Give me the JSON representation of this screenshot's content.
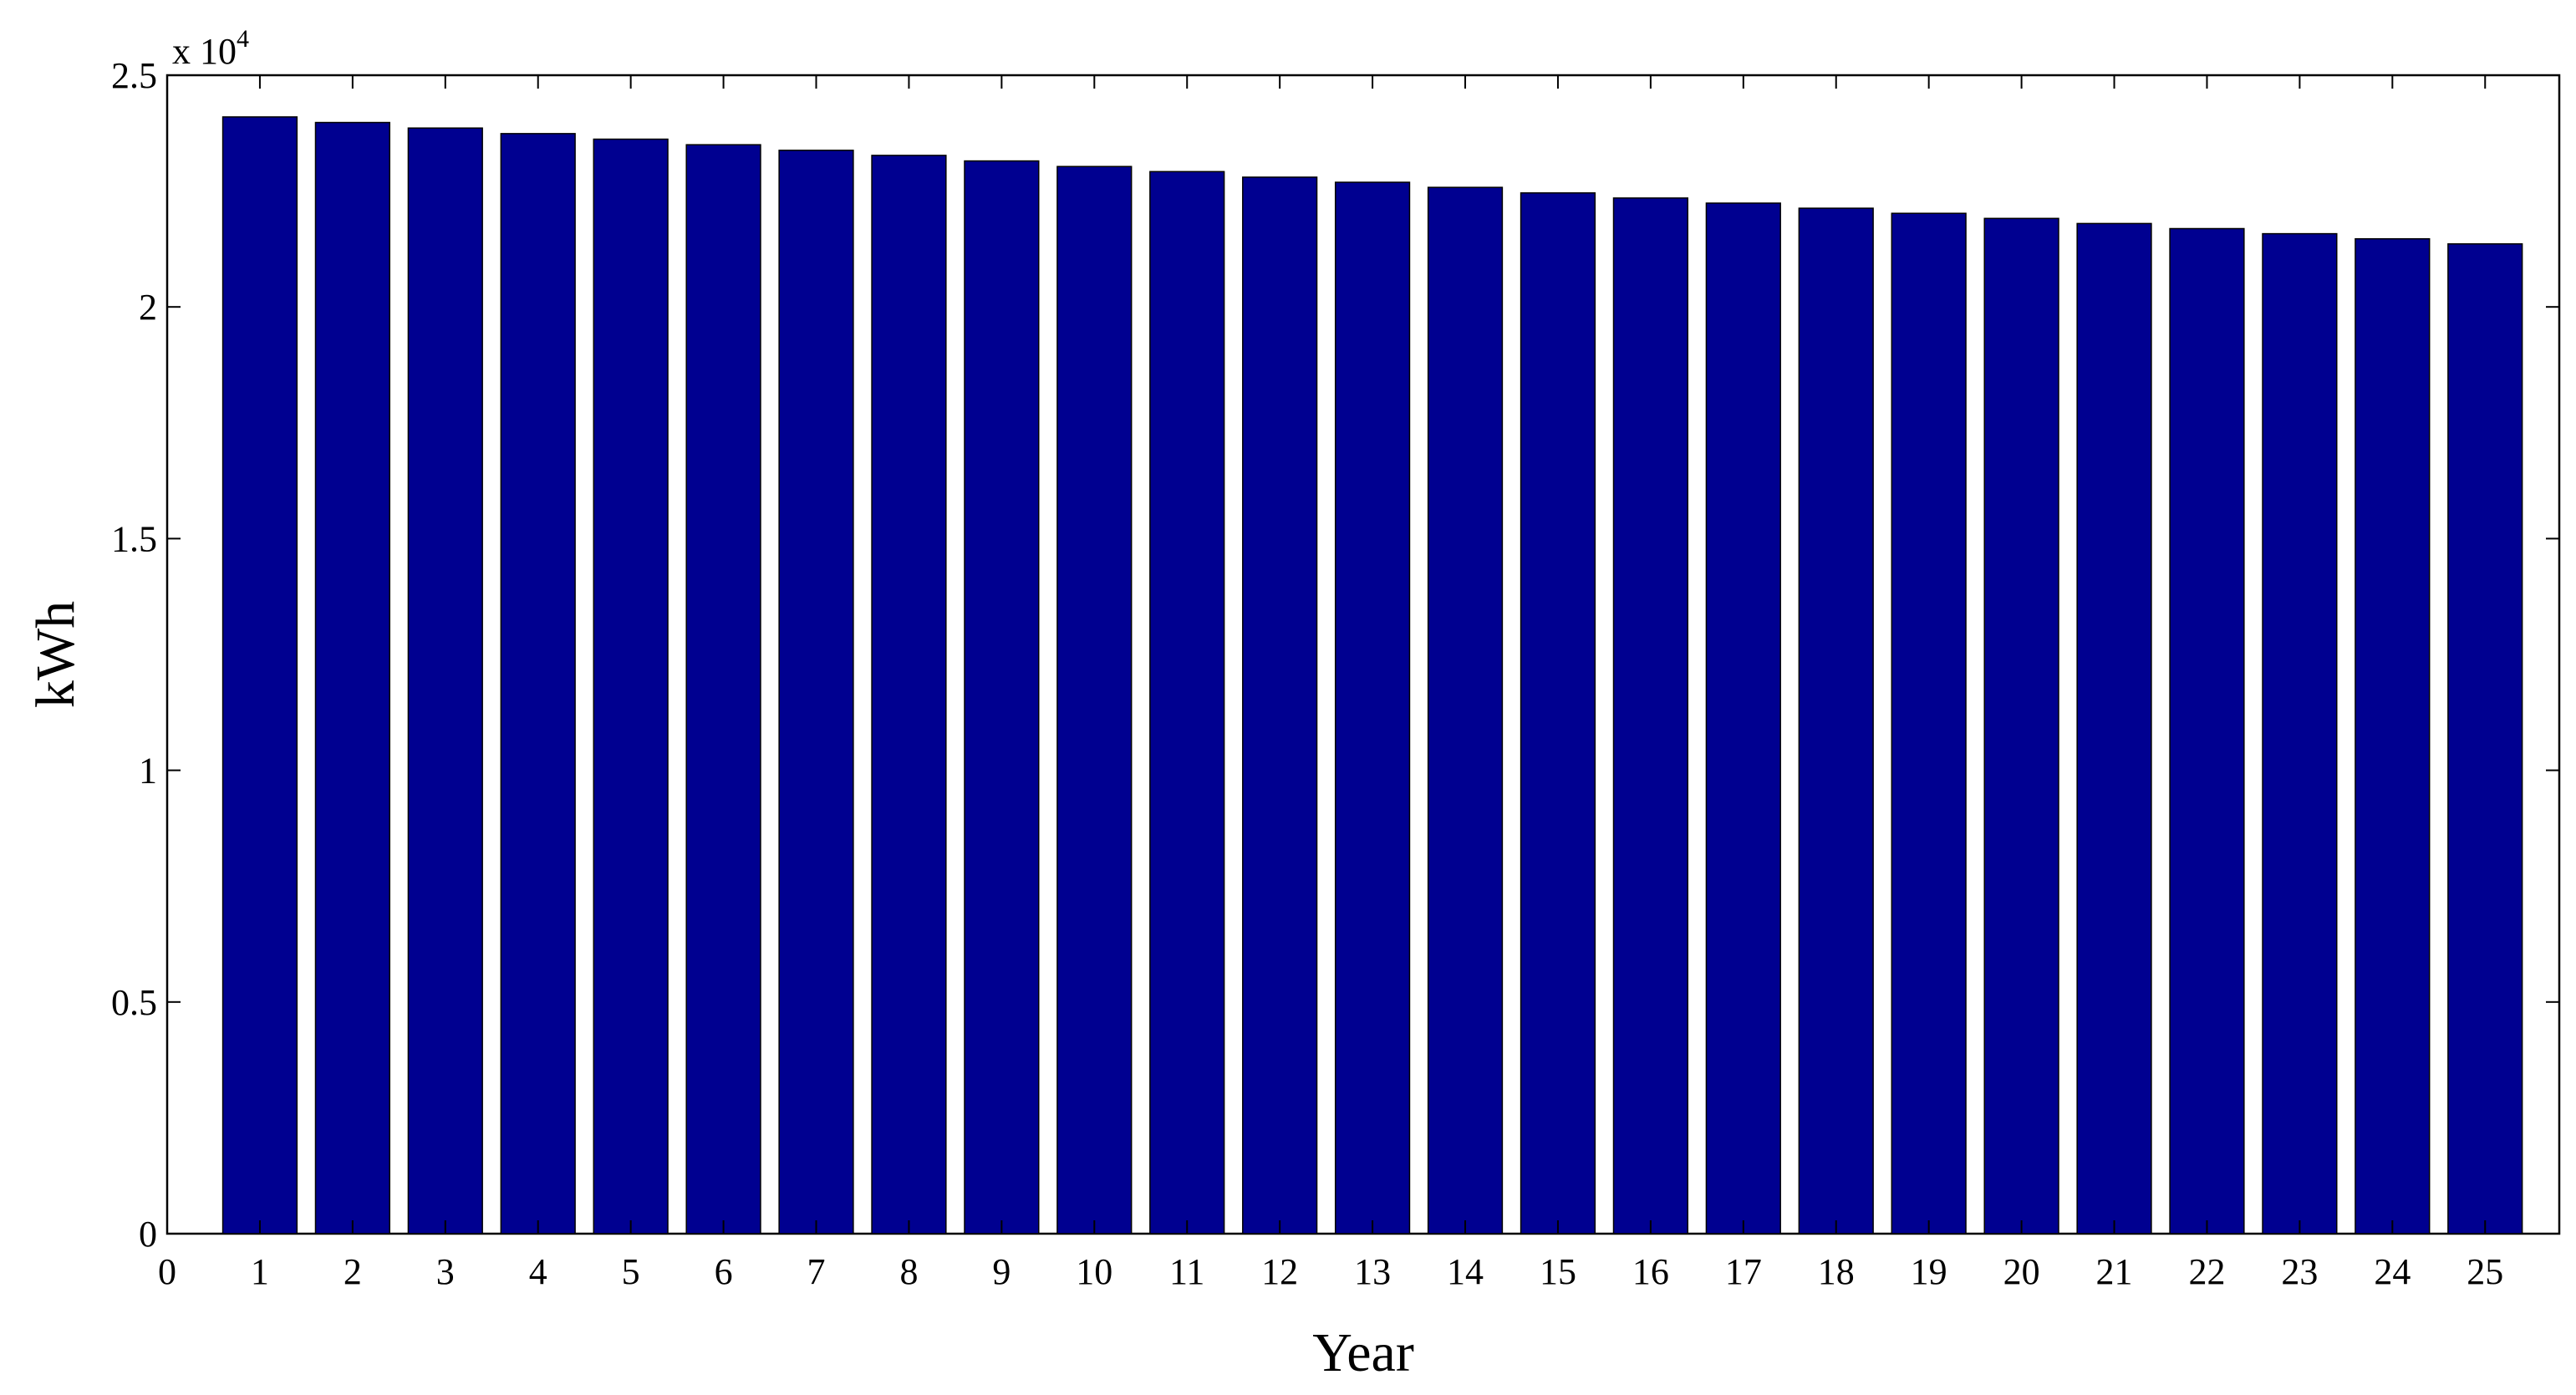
{
  "chart_data": {
    "type": "bar",
    "xlabel": "Year",
    "ylabel": "kWh",
    "y_multiplier": {
      "base": "x 10",
      "exponent": "4"
    },
    "categories": [
      "1",
      "2",
      "3",
      "4",
      "5",
      "6",
      "7",
      "8",
      "9",
      "10",
      "11",
      "12",
      "13",
      "14",
      "15",
      "16",
      "17",
      "18",
      "19",
      "20",
      "21",
      "22",
      "23",
      "24",
      "25"
    ],
    "values": [
      24100,
      23980,
      23860,
      23740,
      23620,
      23500,
      23380,
      23270,
      23150,
      23030,
      22920,
      22800,
      22690,
      22580,
      22460,
      22350,
      22240,
      22130,
      22020,
      21910,
      21800,
      21690,
      21580,
      21470,
      21360
    ],
    "xlim": [
      0,
      25.8
    ],
    "ylim": [
      0,
      25000
    ],
    "x_ticks": [
      "0",
      "1",
      "2",
      "3",
      "4",
      "5",
      "6",
      "7",
      "8",
      "9",
      "10",
      "11",
      "12",
      "13",
      "14",
      "15",
      "16",
      "17",
      "18",
      "19",
      "20",
      "21",
      "22",
      "23",
      "24",
      "25"
    ],
    "y_ticks": [
      {
        "value": 0,
        "label": "0"
      },
      {
        "value": 5000,
        "label": "0.5"
      },
      {
        "value": 10000,
        "label": "1"
      },
      {
        "value": 15000,
        "label": "1.5"
      },
      {
        "value": 20000,
        "label": "2"
      },
      {
        "value": 25000,
        "label": "2.5"
      }
    ],
    "bar_color": "#000090",
    "grid": false,
    "legend": "none"
  }
}
